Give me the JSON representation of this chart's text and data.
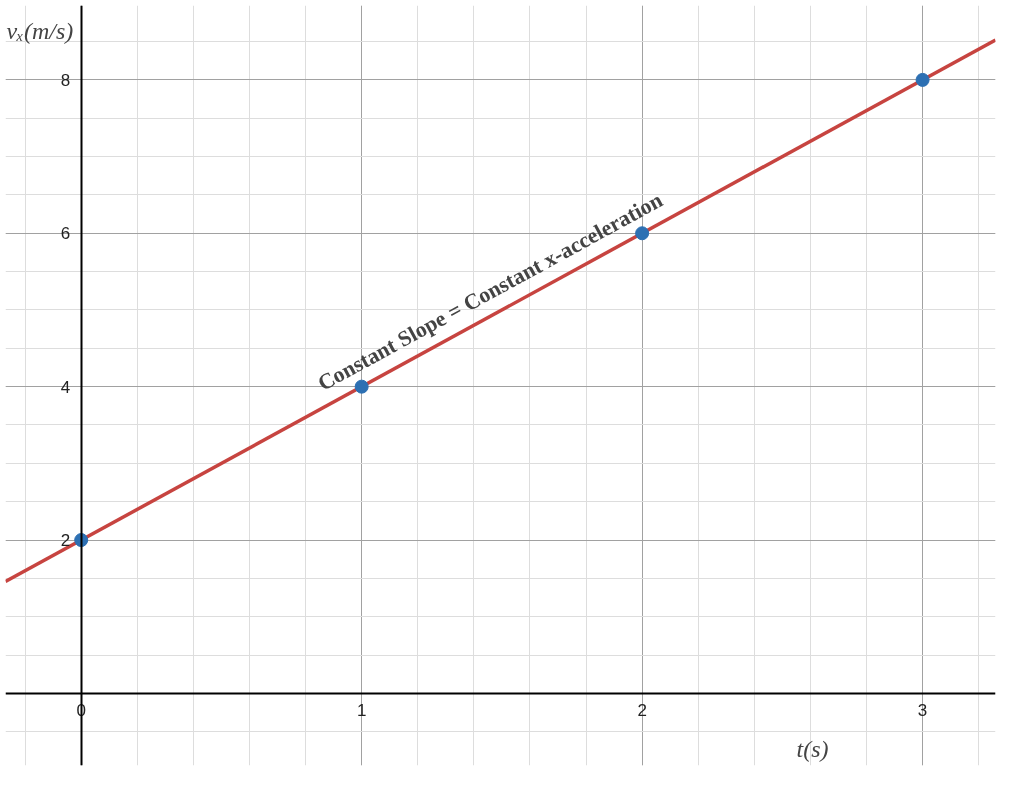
{
  "chart_data": {
    "type": "scatter",
    "xlabel": "t(s)",
    "ylabel": "vₓ(m/s)",
    "x": [
      0,
      1,
      2,
      3
    ],
    "series": [
      {
        "color": "#2d70b3",
        "marker": "circle",
        "values": [
          2,
          4,
          6,
          8
        ]
      },
      {
        "type": "line",
        "color": "#c74440",
        "x": [
          -0.27,
          3.26
        ],
        "values": [
          1.46,
          8.52
        ]
      }
    ],
    "xlim": [
      -0.27,
      3.26
    ],
    "ylim": [
      -0.94,
      8.97
    ],
    "xticks": [
      0,
      1,
      2,
      3
    ],
    "yticks": [
      2,
      4,
      6,
      8
    ],
    "annotations": [
      "Constant Slope = Constant x-acceleration"
    ],
    "grid": true,
    "line_style": "solid"
  }
}
